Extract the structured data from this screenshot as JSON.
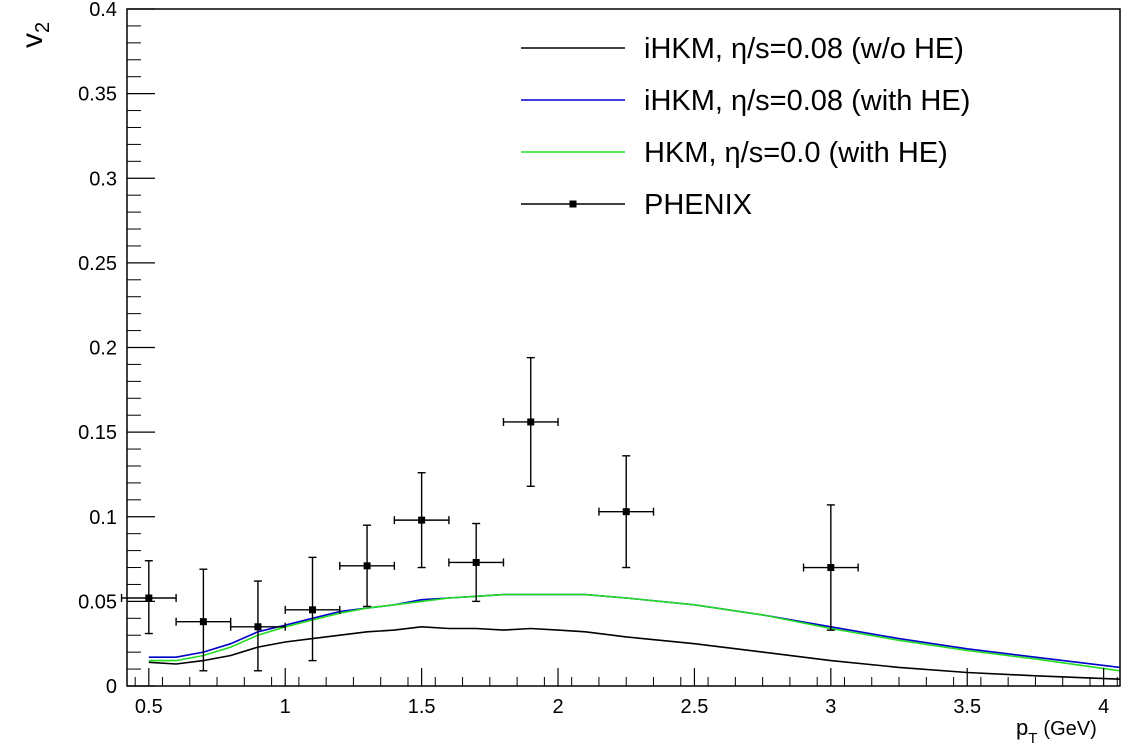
{
  "chart_data": {
    "type": "line",
    "xlabel_main": "p",
    "xlabel_sub": "T",
    "xlabel_unit": "(GeV)",
    "ylabel_main": "v",
    "ylabel_sub": "2",
    "xlim": [
      0.42,
      4.06
    ],
    "ylim": [
      0,
      0.4
    ],
    "xticks": [
      0.5,
      1,
      1.5,
      2,
      2.5,
      3,
      3.5,
      4
    ],
    "xtick_labels": [
      "0.5",
      "1",
      "1.5",
      "2",
      "2.5",
      "3",
      "3.5",
      "4"
    ],
    "yticks": [
      0,
      0.05,
      0.1,
      0.15,
      0.2,
      0.25,
      0.3,
      0.35,
      0.4
    ],
    "ytick_labels": [
      "0",
      "0.05",
      "0.1",
      "0.15",
      "0.2",
      "0.25",
      "0.3",
      "0.35",
      "0.4"
    ],
    "legend_position": "top-right",
    "series": [
      {
        "name": "iHKM, η/s=0.08 (w/o HE)",
        "color": "#000000",
        "x": [
          0.5,
          0.6,
          0.7,
          0.8,
          0.9,
          1.0,
          1.1,
          1.2,
          1.3,
          1.4,
          1.5,
          1.6,
          1.7,
          1.8,
          1.9,
          2.0,
          2.1,
          2.25,
          2.5,
          2.75,
          3.0,
          3.25,
          3.5,
          3.75,
          4.06
        ],
        "y": [
          0.014,
          0.013,
          0.015,
          0.018,
          0.023,
          0.026,
          0.028,
          0.03,
          0.032,
          0.033,
          0.035,
          0.034,
          0.034,
          0.033,
          0.034,
          0.033,
          0.032,
          0.029,
          0.025,
          0.02,
          0.015,
          0.011,
          0.008,
          0.006,
          0.004
        ]
      },
      {
        "name": "iHKM, η/s=0.08 (with HE)",
        "color": "#0000cc",
        "x": [
          0.5,
          0.6,
          0.7,
          0.8,
          0.9,
          1.0,
          1.1,
          1.2,
          1.3,
          1.4,
          1.5,
          1.6,
          1.7,
          1.8,
          1.9,
          2.0,
          2.1,
          2.25,
          2.5,
          2.75,
          3.0,
          3.25,
          3.5,
          3.75,
          4.06
        ],
        "y": [
          0.017,
          0.017,
          0.02,
          0.025,
          0.032,
          0.036,
          0.04,
          0.044,
          0.046,
          0.048,
          0.051,
          0.052,
          0.053,
          0.054,
          0.054,
          0.054,
          0.054,
          0.052,
          0.048,
          0.042,
          0.035,
          0.028,
          0.022,
          0.017,
          0.011
        ]
      },
      {
        "name": "HKM, η/s=0.0 (with HE)",
        "color": "#22dd22",
        "x": [
          0.5,
          0.6,
          0.7,
          0.8,
          0.9,
          1.0,
          1.1,
          1.2,
          1.3,
          1.4,
          1.5,
          1.6,
          1.7,
          1.8,
          1.9,
          2.0,
          2.1,
          2.25,
          2.5,
          2.75,
          3.0,
          3.25,
          3.5,
          3.75,
          4.06
        ],
        "y": [
          0.015,
          0.015,
          0.018,
          0.023,
          0.03,
          0.035,
          0.039,
          0.043,
          0.046,
          0.048,
          0.05,
          0.052,
          0.053,
          0.054,
          0.054,
          0.054,
          0.054,
          0.052,
          0.048,
          0.042,
          0.034,
          0.027,
          0.021,
          0.016,
          0.009
        ]
      }
    ],
    "data_points": {
      "name": "PHENIX",
      "color": "#000000",
      "points": [
        {
          "x": 0.5,
          "y": 0.052,
          "xerr": 0.1,
          "yerr_low": 0.021,
          "yerr_high": 0.022
        },
        {
          "x": 0.7,
          "y": 0.038,
          "xerr": 0.1,
          "yerr_low": 0.029,
          "yerr_high": 0.031
        },
        {
          "x": 0.9,
          "y": 0.035,
          "xerr": 0.1,
          "yerr_low": 0.026,
          "yerr_high": 0.027
        },
        {
          "x": 1.1,
          "y": 0.045,
          "xerr": 0.1,
          "yerr_low": 0.03,
          "yerr_high": 0.031
        },
        {
          "x": 1.3,
          "y": 0.071,
          "xerr": 0.1,
          "yerr_low": 0.024,
          "yerr_high": 0.024
        },
        {
          "x": 1.5,
          "y": 0.098,
          "xerr": 0.1,
          "yerr_low": 0.028,
          "yerr_high": 0.028
        },
        {
          "x": 1.7,
          "y": 0.073,
          "xerr": 0.1,
          "yerr_low": 0.023,
          "yerr_high": 0.023
        },
        {
          "x": 1.9,
          "y": 0.156,
          "xerr": 0.1,
          "yerr_low": 0.038,
          "yerr_high": 0.038
        },
        {
          "x": 2.25,
          "y": 0.103,
          "xerr": 0.1,
          "yerr_low": 0.033,
          "yerr_high": 0.033
        },
        {
          "x": 3.0,
          "y": 0.07,
          "xerr": 0.1,
          "yerr_low": 0.037,
          "yerr_high": 0.037
        }
      ]
    }
  }
}
